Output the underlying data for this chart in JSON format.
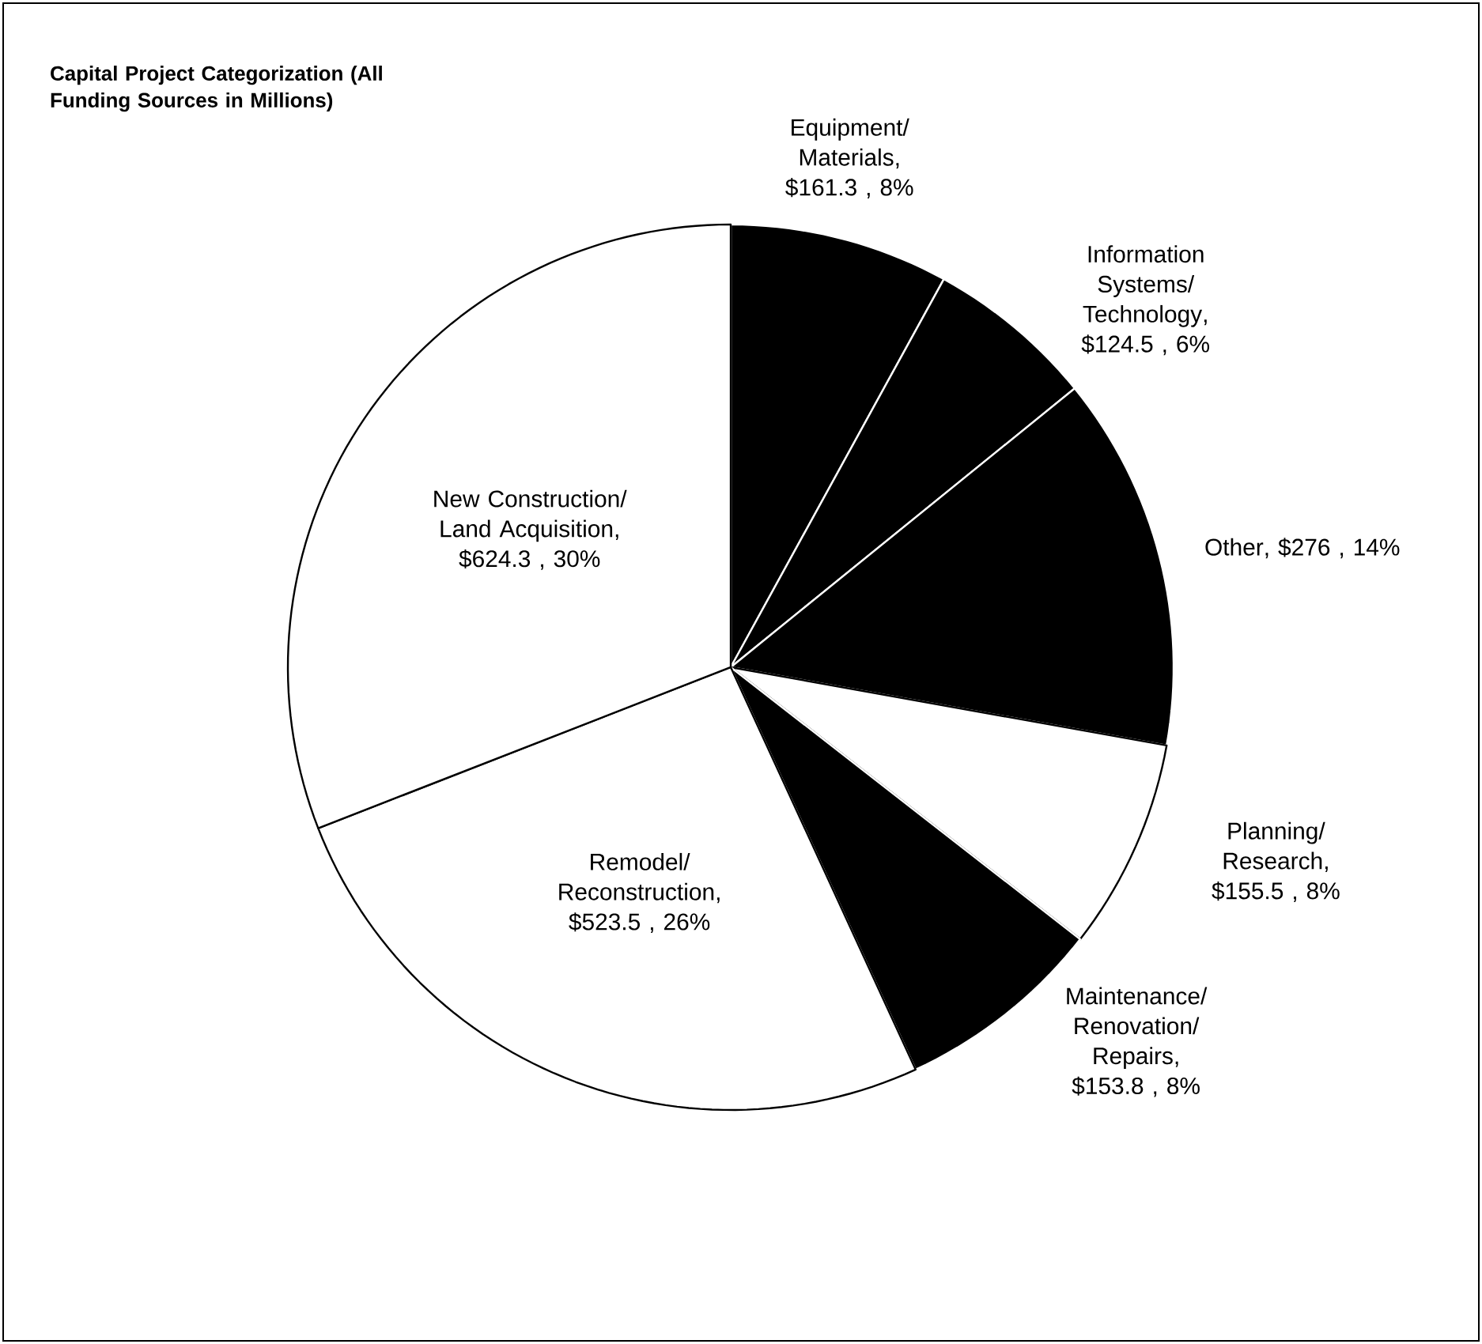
{
  "chart_data": {
    "type": "pie",
    "title": "Capital Project Categorization (All Funding Sources in Millions)",
    "categories": [
      "Equipment/ Materials",
      "Information Systems/ Technology",
      "Other",
      "Planning/ Research",
      "Maintenance/ Renovation/ Repairs",
      "Remodel/ Reconstruction",
      "New Construction/ Land Acquisition"
    ],
    "values": [
      161.3,
      124.5,
      276,
      155.5,
      153.8,
      523.5,
      624.3
    ],
    "value_labels": [
      ", $161.3 , 8%",
      ", $124.5 , 6%",
      ", $276 , 14%",
      ", $155.5 , 8%",
      ", $153.8 , 8%",
      ", $523.5 , 26%",
      ", $624.3 , 30%"
    ],
    "colors": [
      "#000000",
      "#000000",
      "#000000",
      "#ffffff",
      "#000000",
      "#ffffff",
      "#ffffff"
    ]
  }
}
